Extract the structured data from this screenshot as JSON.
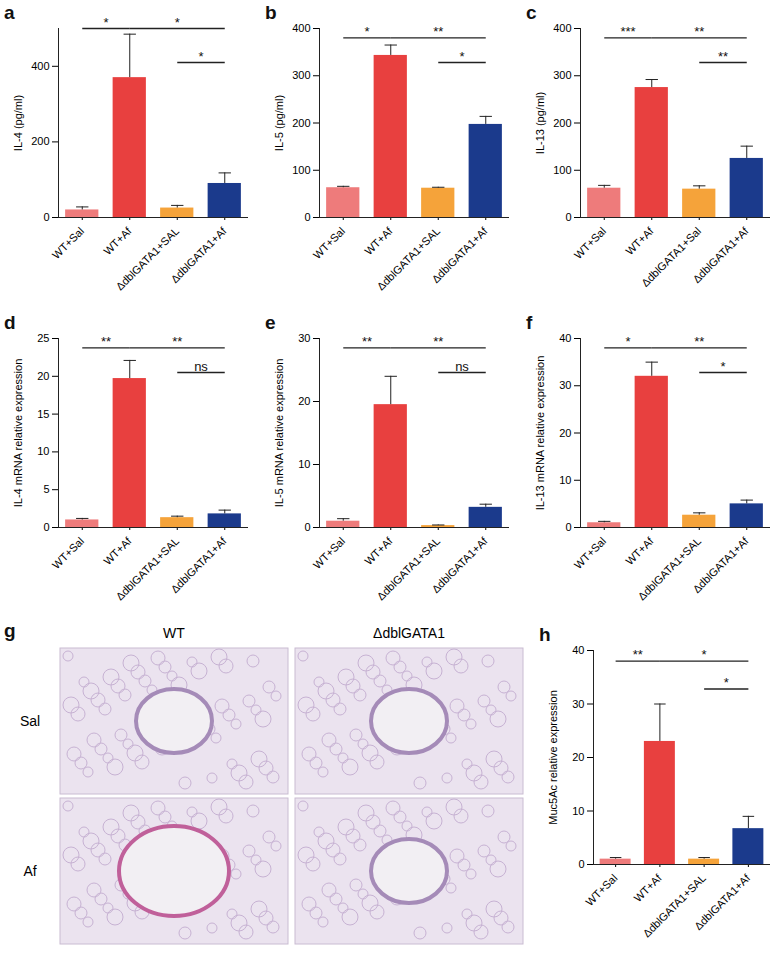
{
  "chart_data": [
    {
      "panel": "a",
      "type": "bar",
      "y_label": "IL-4 (pg/ml)",
      "categories": [
        "WT+Sal",
        "WT+Af",
        "ΔdblGATA1+SAL",
        "ΔdblGATA1+Af"
      ],
      "values": [
        20,
        370,
        25,
        90
      ],
      "errors": [
        8,
        115,
        7,
        28
      ],
      "colors": [
        "#ee7b7b",
        "#e8403f",
        "#f5a33a",
        "#1b3a8c"
      ],
      "ylim": [
        0,
        500
      ],
      "yticks": [
        0,
        200,
        400
      ],
      "annotations": [
        {
          "from": "WT+Sal",
          "to": "WT+Af",
          "label": "*"
        },
        {
          "from": "WT+Af",
          "to": "ΔdblGATA1+Af",
          "label": "*"
        },
        {
          "from": "ΔdblGATA1+SAL",
          "to": "ΔdblGATA1+Af",
          "label": "*"
        }
      ]
    },
    {
      "panel": "b",
      "type": "bar",
      "y_label": "IL-5 (pg/ml)",
      "categories": [
        "WT+Sal",
        "WT+Af",
        "ΔdblGATA1+SAL",
        "ΔdblGATA1+Af"
      ],
      "values": [
        63,
        343,
        62,
        197
      ],
      "errors": [
        3,
        22,
        2,
        17
      ],
      "colors": [
        "#ee7b7b",
        "#e8403f",
        "#f5a33a",
        "#1b3a8c"
      ],
      "ylim": [
        0,
        400
      ],
      "yticks": [
        0,
        100,
        200,
        300,
        400
      ],
      "annotations": [
        {
          "from": "WT+Sal",
          "to": "WT+Af",
          "label": "*"
        },
        {
          "from": "WT+Af",
          "to": "ΔdblGATA1+Af",
          "label": "**"
        },
        {
          "from": "ΔdblGATA1+SAL",
          "to": "ΔdblGATA1+Af",
          "label": "*"
        }
      ]
    },
    {
      "panel": "c",
      "type": "bar",
      "y_label": "IL-13 (pg/ml)",
      "categories": [
        "WT+Sal",
        "WT+Af",
        "ΔdblGATA1+Sal",
        "ΔdblGATA1+Af"
      ],
      "values": [
        62,
        275,
        60,
        125
      ],
      "errors": [
        6,
        17,
        7,
        26
      ],
      "colors": [
        "#ee7b7b",
        "#e8403f",
        "#f5a33a",
        "#1b3a8c"
      ],
      "ylim": [
        0,
        400
      ],
      "yticks": [
        0,
        100,
        200,
        300,
        400
      ],
      "annotations": [
        {
          "from": "WT+Sal",
          "to": "WT+Af",
          "label": "***"
        },
        {
          "from": "WT+Af",
          "to": "ΔdblGATA1+Af",
          "label": "**"
        },
        {
          "from": "ΔdblGATA1+Sal",
          "to": "ΔdblGATA1+Af",
          "label": "**"
        }
      ]
    },
    {
      "panel": "d",
      "type": "bar",
      "y_label": "IL-4 mRNA relative expression",
      "categories": [
        "WT+Sal",
        "WT+Af",
        "ΔdblGATA1+SAL",
        "ΔdblGATA1+Af"
      ],
      "values": [
        1.0,
        19.7,
        1.3,
        1.8
      ],
      "errors": [
        0.2,
        2.4,
        0.2,
        0.5
      ],
      "colors": [
        "#ee7b7b",
        "#e8403f",
        "#f5a33a",
        "#1b3a8c"
      ],
      "ylim": [
        0,
        25
      ],
      "yticks": [
        0,
        5,
        10,
        15,
        20,
        25
      ],
      "annotations": [
        {
          "from": "WT+Sal",
          "to": "WT+Af",
          "label": "**"
        },
        {
          "from": "WT+Af",
          "to": "ΔdblGATA1+Af",
          "label": "**"
        },
        {
          "from": "ΔdblGATA1+SAL",
          "to": "ΔdblGATA1+Af",
          "label": "ns"
        }
      ]
    },
    {
      "panel": "e",
      "type": "bar",
      "y_label": "IL-5 mRNA relative expression",
      "categories": [
        "WT+Sal",
        "WT+Af",
        "ΔdblGATA1+SAL",
        "ΔdblGATA1+Af"
      ],
      "values": [
        1.0,
        19.5,
        0.3,
        3.2
      ],
      "errors": [
        0.4,
        4.5,
        0.1,
        0.5
      ],
      "colors": [
        "#ee7b7b",
        "#e8403f",
        "#f5a33a",
        "#1b3a8c"
      ],
      "ylim": [
        0,
        30
      ],
      "yticks": [
        0,
        10,
        20,
        30
      ],
      "annotations": [
        {
          "from": "WT+Sal",
          "to": "WT+Af",
          "label": "**"
        },
        {
          "from": "WT+Af",
          "to": "ΔdblGATA1+Af",
          "label": "**"
        },
        {
          "from": "ΔdblGATA1+SAL",
          "to": "ΔdblGATA1+Af",
          "label": "ns"
        }
      ]
    },
    {
      "panel": "f",
      "type": "bar",
      "y_label": "IL-13 mRNA relative expression",
      "categories": [
        "WT+Sal",
        "WT+Af",
        "ΔdblGATA1+SAL",
        "ΔdblGATA1+Af"
      ],
      "values": [
        1.0,
        32,
        2.6,
        5.0
      ],
      "errors": [
        0.3,
        3,
        0.5,
        0.8
      ],
      "colors": [
        "#ee7b7b",
        "#e8403f",
        "#f5a33a",
        "#1b3a8c"
      ],
      "ylim": [
        0,
        40
      ],
      "yticks": [
        0,
        10,
        20,
        30,
        40
      ],
      "annotations": [
        {
          "from": "WT+Sal",
          "to": "WT+Af",
          "label": "*"
        },
        {
          "from": "WT+Af",
          "to": "ΔdblGATA1+Af",
          "label": "**"
        },
        {
          "from": "ΔdblGATA1+SAL",
          "to": "ΔdblGATA1+Af",
          "label": "*"
        }
      ]
    },
    {
      "panel": "h",
      "type": "bar",
      "y_label": "Muc5Ac relative expression",
      "categories": [
        "WT+Sal",
        "WT+Af",
        "ΔdblGATA1+SAL",
        "ΔdblGATA1+Af"
      ],
      "values": [
        1.0,
        23,
        1.0,
        6.7
      ],
      "errors": [
        0.3,
        7,
        0.3,
        2.3
      ],
      "colors": [
        "#ee7b7b",
        "#e8403f",
        "#f5a33a",
        "#1b3a8c"
      ],
      "ylim": [
        0,
        40
      ],
      "yticks": [
        0,
        10,
        20,
        30,
        40
      ],
      "annotations": [
        {
          "from": "WT+Sal",
          "to": "WT+Af",
          "label": "**"
        },
        {
          "from": "WT+Af",
          "to": "ΔdblGATA1+Af",
          "label": "*"
        },
        {
          "from": "ΔdblGATA1+SAL",
          "to": "ΔdblGATA1+Af",
          "label": "*"
        }
      ]
    }
  ],
  "image_panel": {
    "panel": "g",
    "columns": [
      "WT",
      "ΔdblGATA1"
    ],
    "rows": [
      "Sal",
      "Af"
    ]
  }
}
